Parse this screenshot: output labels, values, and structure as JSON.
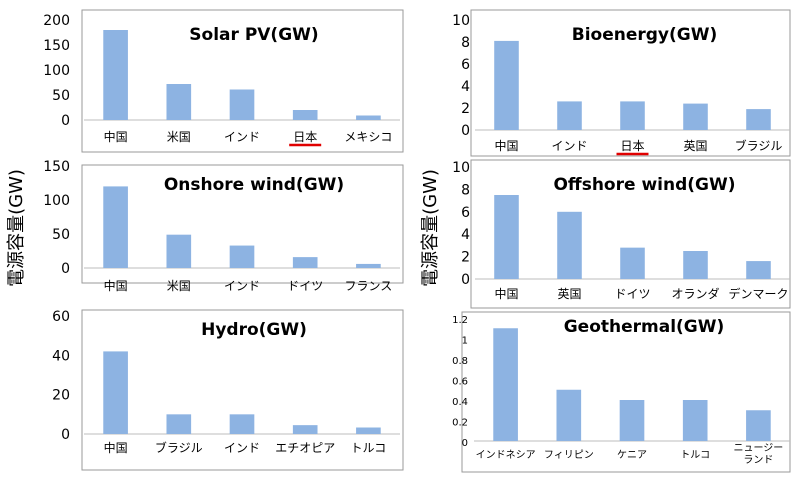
{
  "y_axis_label": "電源容量(GW)",
  "chart_data": [
    {
      "type": "bar",
      "title": "Solar PV(GW)",
      "categories": [
        "中国",
        "米国",
        "インド",
        "日本",
        "メキシコ"
      ],
      "values": [
        180,
        72,
        61,
        20,
        9
      ],
      "ylim": [
        0,
        200
      ],
      "yticks": [
        "200",
        "150",
        "100",
        "50",
        "0"
      ],
      "highlight": "日本",
      "grid": false,
      "bar_color": "#8DB3E2",
      "highlight_color": "#E00000"
    },
    {
      "type": "bar",
      "title": "Bioenergy(GW)",
      "categories": [
        "中国",
        "インド",
        "日本",
        "英国",
        "ブラジル"
      ],
      "values": [
        8.1,
        2.6,
        2.6,
        2.4,
        1.9
      ],
      "ylim": [
        0,
        10
      ],
      "yticks": [
        "10",
        "8",
        "6",
        "4",
        "2",
        "0"
      ],
      "highlight": "日本",
      "grid": false,
      "bar_color": "#8DB3E2",
      "highlight_color": "#E00000"
    },
    {
      "type": "bar",
      "title": "Onshore wind(GW)",
      "categories": [
        "中国",
        "米国",
        "インド",
        "ドイツ",
        "フランス"
      ],
      "values": [
        120,
        49,
        33,
        16,
        6
      ],
      "ylim": [
        0,
        150
      ],
      "yticks": [
        "150",
        "100",
        "50",
        "0"
      ],
      "grid": false,
      "bar_color": "#8DB3E2"
    },
    {
      "type": "bar",
      "title": "Offshore wind(GW)",
      "categories": [
        "中国",
        "英国",
        "ドイツ",
        "オランダ",
        "デンマーク"
      ],
      "values": [
        7.5,
        6.0,
        2.8,
        2.5,
        1.6
      ],
      "ylim": [
        0,
        10
      ],
      "yticks": [
        "10",
        "8",
        "6",
        "4",
        "2",
        "0"
      ],
      "grid": false,
      "bar_color": "#8DB3E2"
    },
    {
      "type": "bar",
      "title": "Hydro(GW)",
      "categories": [
        "中国",
        "ブラジル",
        "インド",
        "エチオピア",
        "トルコ"
      ],
      "values": [
        42,
        10,
        10,
        4.5,
        3.3
      ],
      "ylim": [
        0,
        60
      ],
      "yticks": [
        "60",
        "40",
        "20",
        "0"
      ],
      "grid": false,
      "bar_color": "#8DB3E2"
    },
    {
      "type": "bar",
      "title": "Geothermal(GW)",
      "categories": [
        "インドネシア",
        "フィリピン",
        "ケニア",
        "トルコ",
        "ニュージー ランド"
      ],
      "category_lines": [
        [
          "インドネシア"
        ],
        [
          "フィリピン"
        ],
        [
          "ケニア"
        ],
        [
          "トルコ"
        ],
        [
          "ニュージー",
          "ランド"
        ]
      ],
      "values": [
        1.1,
        0.5,
        0.4,
        0.4,
        0.3
      ],
      "ylim": [
        0,
        1.2
      ],
      "yticks": [
        "1.2",
        "1",
        "0.8",
        "0.6",
        "0.4",
        "0.2",
        "0"
      ],
      "grid": false,
      "bar_color": "#8DB3E2"
    }
  ]
}
